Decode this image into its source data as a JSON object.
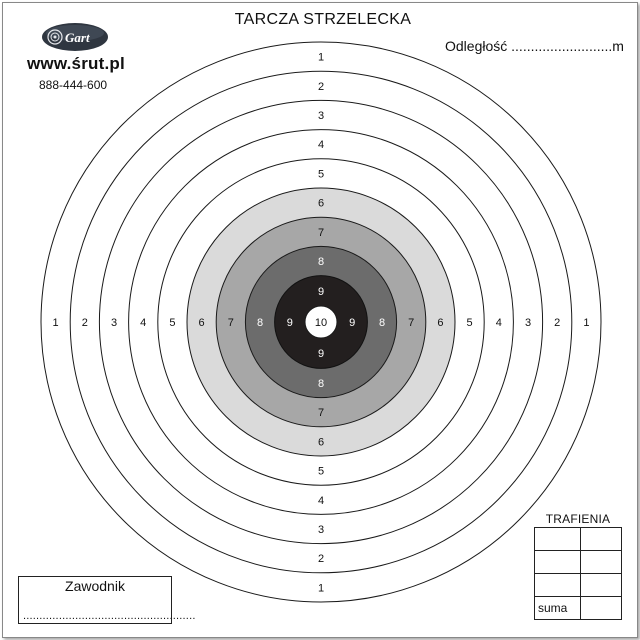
{
  "header": {
    "title": "TARCZA STRZELECKA",
    "distance_label": "Odległość ..........................m"
  },
  "brand": {
    "logo_text": "Gart",
    "website": "www.śrut.pl",
    "phone": "888-444-600"
  },
  "target": {
    "rings": [
      {
        "score": "1",
        "fill": "#ffffff"
      },
      {
        "score": "2",
        "fill": "#ffffff"
      },
      {
        "score": "3",
        "fill": "#ffffff"
      },
      {
        "score": "4",
        "fill": "#ffffff"
      },
      {
        "score": "5",
        "fill": "#ffffff"
      },
      {
        "score": "6",
        "fill": "#dadada"
      },
      {
        "score": "7",
        "fill": "#a7a7a7"
      },
      {
        "score": "8",
        "fill": "#6c6c6c"
      },
      {
        "score": "9",
        "fill": "#231f1f"
      },
      {
        "score": "10",
        "fill": "#ffffff"
      }
    ],
    "label_color_light": "#111111",
    "label_color_dark": "#ffffff"
  },
  "hits": {
    "title": "TRAFIENIA",
    "sum_label": "suma"
  },
  "competitor": {
    "label": "Zawodnik",
    "line": "....................................................."
  }
}
